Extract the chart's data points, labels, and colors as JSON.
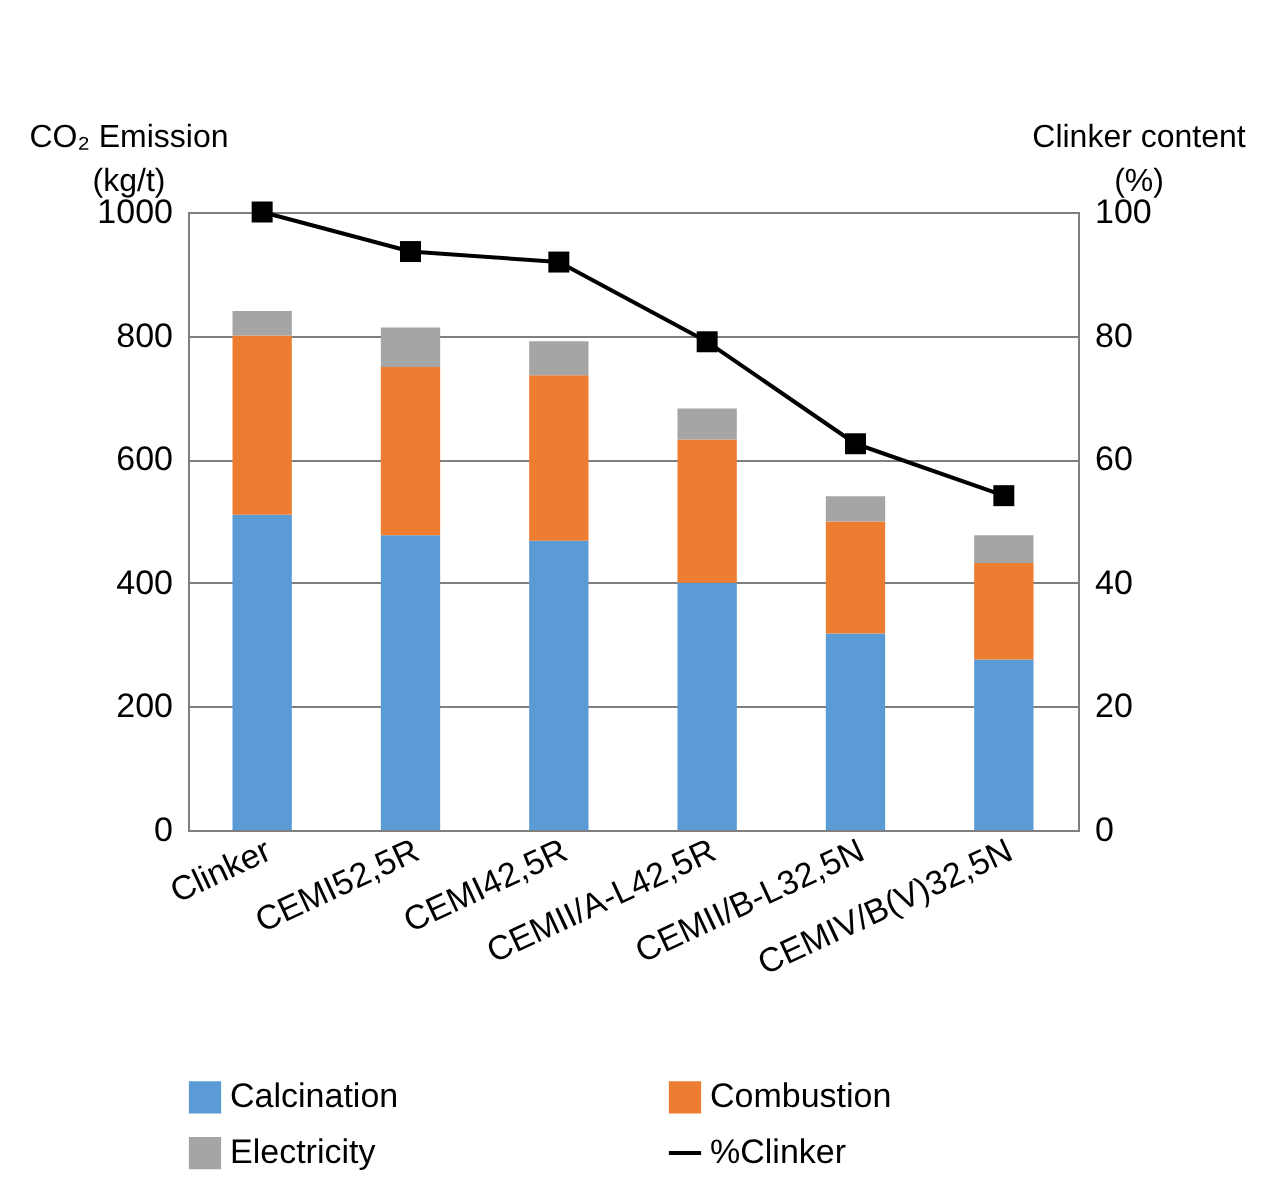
{
  "chart_data": {
    "type": "bar",
    "stacked": true,
    "ylabel": "CO₂ Emission (kg/t)",
    "y2label": "Clinker content (%)",
    "categories": [
      "Clinker",
      "CEMI52,5R",
      "CEMI42,5R",
      "CEMII/A-L42,5R",
      "CEMII/B-L32,5N",
      "CEMIV/B(V)32,5N"
    ],
    "series": [
      {
        "name": "Calcination",
        "color": "#5b9bd5",
        "values": [
          510,
          477,
          468,
          400,
          318,
          276
        ]
      },
      {
        "name": "Combustion",
        "color": "#ed7d31",
        "values": [
          290,
          272,
          268,
          232,
          181,
          156
        ]
      },
      {
        "name": "Electricity",
        "color": "#a5a5a5",
        "values": [
          40,
          64,
          55,
          50,
          41,
          45
        ]
      },
      {
        "name": "%Clinker",
        "type": "line",
        "axis": "y2",
        "color": "#000000",
        "marker": "square",
        "values": [
          100,
          93.6,
          91.9,
          79,
          62.5,
          54.1
        ]
      }
    ],
    "ylim": [
      0,
      1000
    ],
    "yticks": [
      0,
      200,
      400,
      600,
      800,
      1000
    ],
    "y2lim": [
      0,
      100
    ],
    "y2ticks": [
      0,
      20,
      40,
      60,
      80,
      100
    ],
    "grid": "y",
    "legend": "bottom"
  }
}
